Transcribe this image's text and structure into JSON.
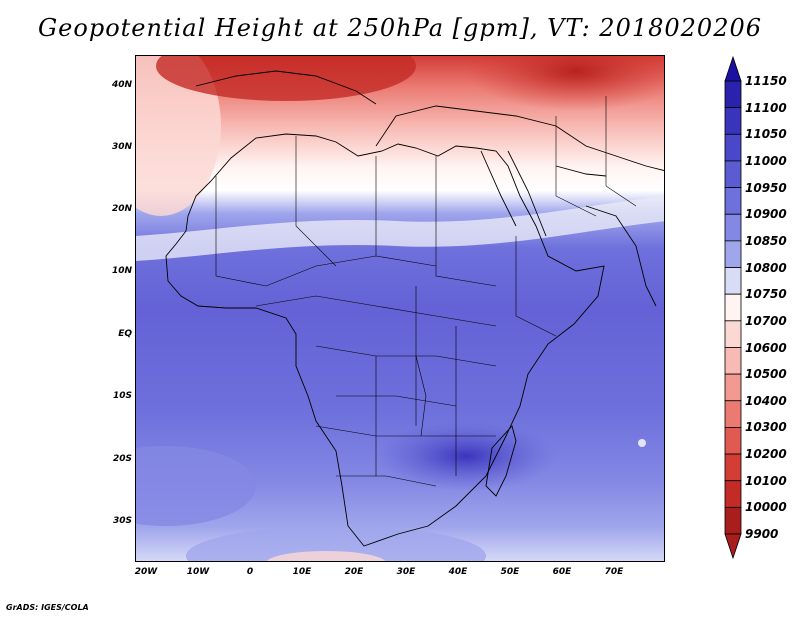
{
  "title": "Geopotential Height at 250hPa [gpm], VT: 2018020206",
  "credit": "GrADS: IGES/COLA",
  "map": {
    "variable": "Geopotential Height",
    "level": "250hPa",
    "units": "gpm",
    "valid_time": "2018020206",
    "lat_range": [
      -37,
      45
    ],
    "lon_range": [
      -22,
      80
    ],
    "lat_ticks": [
      "40N",
      "30N",
      "20N",
      "10N",
      "EQ",
      "10S",
      "20S",
      "30S"
    ],
    "lon_ticks": [
      "20W",
      "10W",
      "0",
      "10E",
      "20E",
      "30E",
      "40E",
      "50E",
      "60E",
      "70E"
    ]
  },
  "colorbar": {
    "orientation": "vertical",
    "placement": "right",
    "levels": [
      "11150",
      "11100",
      "11050",
      "11000",
      "10950",
      "10900",
      "10850",
      "10800",
      "10750",
      "10700",
      "10600",
      "10500",
      "10400",
      "10300",
      "10200",
      "10100",
      "10000",
      "9900"
    ],
    "colors": [
      "#1c10a0",
      "#2a22ad",
      "#3a34bc",
      "#4a48c8",
      "#5c5cd2",
      "#6e70dc",
      "#8488e4",
      "#a0a6ec",
      "#d8dcf6",
      "#fff4f2",
      "#fcd8d4",
      "#f8bab4",
      "#f29a92",
      "#ea7a72",
      "#e05a52",
      "#d43c36",
      "#c42a26",
      "#a81e1c"
    ]
  },
  "icons": {
    "colorbar_top": "triangle-up",
    "colorbar_bottom": "triangle-down"
  }
}
